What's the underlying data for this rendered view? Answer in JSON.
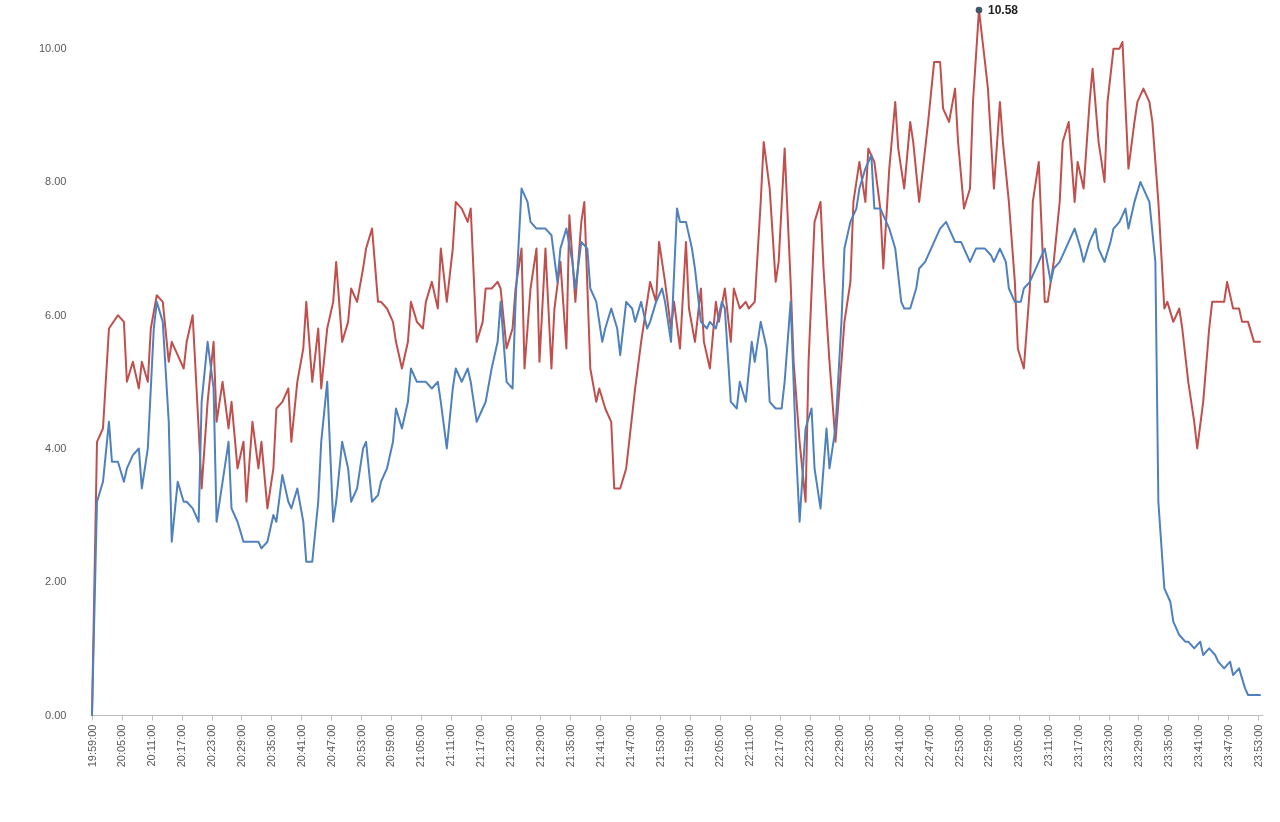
{
  "chart_data": {
    "type": "line",
    "grid": false,
    "legend": false,
    "xlim": [
      19.9833,
      23.9
    ],
    "ylim": [
      0,
      10.7
    ],
    "xticks": [
      {
        "value": 19.9833,
        "label": "19:59:00"
      },
      {
        "value": 20.0833,
        "label": "20:05:00"
      },
      {
        "value": 20.1833,
        "label": "20:11:00"
      },
      {
        "value": 20.2833,
        "label": "20:17:00"
      },
      {
        "value": 20.3833,
        "label": "20:23:00"
      },
      {
        "value": 20.4833,
        "label": "20:29:00"
      },
      {
        "value": 20.5833,
        "label": "20:35:00"
      },
      {
        "value": 20.6833,
        "label": "20:41:00"
      },
      {
        "value": 20.7833,
        "label": "20:47:00"
      },
      {
        "value": 20.8833,
        "label": "20:53:00"
      },
      {
        "value": 20.9833,
        "label": "20:59:00"
      },
      {
        "value": 21.0833,
        "label": "21:05:00"
      },
      {
        "value": 21.1833,
        "label": "21:11:00"
      },
      {
        "value": 21.2833,
        "label": "21:17:00"
      },
      {
        "value": 21.3833,
        "label": "21:23:00"
      },
      {
        "value": 21.4833,
        "label": "21:29:00"
      },
      {
        "value": 21.5833,
        "label": "21:35:00"
      },
      {
        "value": 21.6833,
        "label": "21:41:00"
      },
      {
        "value": 21.7833,
        "label": "21:47:00"
      },
      {
        "value": 21.8833,
        "label": "21:53:00"
      },
      {
        "value": 21.9833,
        "label": "21:59:00"
      },
      {
        "value": 22.0833,
        "label": "22:05:00"
      },
      {
        "value": 22.1833,
        "label": "22:11:00"
      },
      {
        "value": 22.2833,
        "label": "22:17:00"
      },
      {
        "value": 22.3833,
        "label": "22:23:00"
      },
      {
        "value": 22.4833,
        "label": "22:29:00"
      },
      {
        "value": 22.5833,
        "label": "22:35:00"
      },
      {
        "value": 22.6833,
        "label": "22:41:00"
      },
      {
        "value": 22.7833,
        "label": "22:47:00"
      },
      {
        "value": 22.8833,
        "label": "22:53:00"
      },
      {
        "value": 22.9833,
        "label": "22:59:00"
      },
      {
        "value": 23.0833,
        "label": "23:05:00"
      },
      {
        "value": 23.1833,
        "label": "23:11:00"
      },
      {
        "value": 23.2833,
        "label": "23:17:00"
      },
      {
        "value": 23.3833,
        "label": "23:23:00"
      },
      {
        "value": 23.4833,
        "label": "23:29:00"
      },
      {
        "value": 23.5833,
        "label": "23:35:00"
      },
      {
        "value": 23.6833,
        "label": "23:41:00"
      },
      {
        "value": 23.7833,
        "label": "23:47:00"
      },
      {
        "value": 23.8833,
        "label": "23:53:00"
      }
    ],
    "yticks": [
      {
        "value": 0,
        "label": "0.00"
      },
      {
        "value": 2,
        "label": "2.00"
      },
      {
        "value": 4,
        "label": "4.00"
      },
      {
        "value": 6,
        "label": "6.00"
      },
      {
        "value": 8,
        "label": "8.00"
      },
      {
        "value": 10,
        "label": "10.00"
      }
    ],
    "annotations": [
      {
        "text": "10.58",
        "x": 22.95,
        "y": 10.58
      }
    ],
    "series": [
      {
        "color": "#c0504d",
        "x": [
          19.9833,
          20.0,
          20.02,
          20.04,
          20.07,
          20.09,
          20.1,
          20.12,
          20.14,
          20.15,
          20.17,
          20.18,
          20.2,
          20.22,
          20.24,
          20.25,
          20.27,
          20.29,
          20.3,
          20.32,
          20.34,
          20.35,
          20.37,
          20.39,
          20.4,
          20.42,
          20.44,
          20.45,
          20.47,
          20.49,
          20.5,
          20.52,
          20.54,
          20.55,
          20.57,
          20.59,
          20.6,
          20.62,
          20.64,
          20.65,
          20.67,
          20.69,
          20.7,
          20.72,
          20.74,
          20.75,
          20.77,
          20.79,
          20.8,
          20.82,
          20.84,
          20.85,
          20.87,
          20.89,
          20.9,
          20.92,
          20.94,
          20.95,
          20.97,
          20.99,
          21.0,
          21.02,
          21.04,
          21.05,
          21.07,
          21.09,
          21.1,
          21.12,
          21.14,
          21.15,
          21.17,
          21.19,
          21.2,
          21.22,
          21.24,
          21.25,
          21.27,
          21.29,
          21.3,
          21.32,
          21.34,
          21.35,
          21.37,
          21.39,
          21.4,
          21.42,
          21.43,
          21.45,
          21.47,
          21.48,
          21.5,
          21.52,
          21.53,
          21.55,
          21.57,
          21.58,
          21.6,
          21.62,
          21.63,
          21.65,
          21.67,
          21.68,
          21.7,
          21.72,
          21.73,
          21.75,
          21.77,
          21.78,
          21.8,
          21.82,
          21.83,
          21.85,
          21.87,
          21.88,
          21.9,
          21.92,
          21.93,
          21.95,
          21.97,
          21.98,
          22.0,
          22.02,
          22.03,
          22.05,
          22.07,
          22.08,
          22.1,
          22.12,
          22.13,
          22.15,
          22.17,
          22.18,
          22.2,
          22.22,
          22.23,
          22.25,
          22.27,
          22.28,
          22.3,
          22.32,
          22.33,
          22.35,
          22.37,
          22.38,
          22.4,
          22.42,
          22.43,
          22.45,
          22.47,
          22.48,
          22.5,
          22.52,
          22.53,
          22.55,
          22.57,
          22.58,
          22.6,
          22.62,
          22.63,
          22.65,
          22.67,
          22.68,
          22.7,
          22.72,
          22.73,
          22.75,
          22.77,
          22.78,
          22.8,
          22.82,
          22.83,
          22.85,
          22.87,
          22.88,
          22.9,
          22.92,
          22.93,
          22.95,
          22.97,
          22.98,
          23.0,
          23.02,
          23.03,
          23.05,
          23.07,
          23.08,
          23.1,
          23.12,
          23.13,
          23.15,
          23.17,
          23.18,
          23.2,
          23.22,
          23.23,
          23.25,
          23.27,
          23.28,
          23.3,
          23.32,
          23.33,
          23.35,
          23.37,
          23.38,
          23.4,
          23.42,
          23.43,
          23.45,
          23.47,
          23.48,
          23.5,
          23.52,
          23.53,
          23.55,
          23.57,
          23.58,
          23.6,
          23.62,
          23.63,
          23.65,
          23.67,
          23.68,
          23.7,
          23.72,
          23.73,
          23.75,
          23.77,
          23.78,
          23.8,
          23.82,
          23.83,
          23.85,
          23.87,
          23.89
        ],
        "values": [
          0,
          4.1,
          4.3,
          5.8,
          6.0,
          5.9,
          5.0,
          5.3,
          4.9,
          5.3,
          5.0,
          5.8,
          6.3,
          6.2,
          5.3,
          5.6,
          5.4,
          5.2,
          5.6,
          6.0,
          4.3,
          3.4,
          4.7,
          5.6,
          4.4,
          5.0,
          4.3,
          4.7,
          3.7,
          4.1,
          3.2,
          4.4,
          3.7,
          4.1,
          3.1,
          3.7,
          4.6,
          4.7,
          4.9,
          4.1,
          5.0,
          5.5,
          6.2,
          5.0,
          5.8,
          4.9,
          5.8,
          6.2,
          6.8,
          5.6,
          5.9,
          6.4,
          6.2,
          6.7,
          7.0,
          7.3,
          6.2,
          6.2,
          6.1,
          5.9,
          5.6,
          5.2,
          5.6,
          6.2,
          5.9,
          5.8,
          6.2,
          6.5,
          6.1,
          7.0,
          6.2,
          7.0,
          7.7,
          7.6,
          7.4,
          7.6,
          5.6,
          5.9,
          6.4,
          6.4,
          6.5,
          6.4,
          5.5,
          5.8,
          6.4,
          7.0,
          5.2,
          6.4,
          7.0,
          5.3,
          7.0,
          5.2,
          6.1,
          6.8,
          5.5,
          7.5,
          6.2,
          7.4,
          7.7,
          5.2,
          4.7,
          4.9,
          4.6,
          4.4,
          3.4,
          3.4,
          3.7,
          4.1,
          4.9,
          5.6,
          5.9,
          6.5,
          6.2,
          7.1,
          6.5,
          5.8,
          6.2,
          5.5,
          7.1,
          6.1,
          5.6,
          6.4,
          5.6,
          5.2,
          6.2,
          5.9,
          6.4,
          5.6,
          6.4,
          6.1,
          6.2,
          6.1,
          6.2,
          7.7,
          8.6,
          7.9,
          6.5,
          6.8,
          8.5,
          6.5,
          5.3,
          4.1,
          3.2,
          5.3,
          7.4,
          7.7,
          6.7,
          5.3,
          4.1,
          4.7,
          5.9,
          6.5,
          7.7,
          8.3,
          7.7,
          8.5,
          8.3,
          7.6,
          6.7,
          8.2,
          9.2,
          8.5,
          7.9,
          8.9,
          8.6,
          7.7,
          8.5,
          8.9,
          9.8,
          9.8,
          9.1,
          8.9,
          9.4,
          8.6,
          7.6,
          7.9,
          9.2,
          10.58,
          9.8,
          9.4,
          7.9,
          9.2,
          8.6,
          7.7,
          6.5,
          5.5,
          5.2,
          6.4,
          7.7,
          8.3,
          6.2,
          6.2,
          6.8,
          7.7,
          8.6,
          8.9,
          7.7,
          8.3,
          7.9,
          9.2,
          9.7,
          8.6,
          8.0,
          9.2,
          10.0,
          10.0,
          10.1,
          8.2,
          8.9,
          9.2,
          9.4,
          9.2,
          8.9,
          7.7,
          6.1,
          6.2,
          5.9,
          6.1,
          5.8,
          5.0,
          4.4,
          4.0,
          4.7,
          5.8,
          6.2,
          6.2,
          6.2,
          6.5,
          6.1,
          6.1,
          5.9,
          5.9,
          5.6,
          5.6
        ]
      },
      {
        "color": "#4f81bd",
        "x": [
          19.9833,
          20.0,
          20.02,
          20.04,
          20.05,
          20.07,
          20.09,
          20.1,
          20.12,
          20.14,
          20.15,
          20.17,
          20.19,
          20.2,
          20.22,
          20.24,
          20.25,
          20.27,
          20.29,
          20.3,
          20.32,
          20.34,
          20.35,
          20.37,
          20.39,
          20.4,
          20.42,
          20.44,
          20.45,
          20.47,
          20.49,
          20.5,
          20.52,
          20.54,
          20.55,
          20.57,
          20.59,
          20.6,
          20.62,
          20.64,
          20.65,
          20.67,
          20.69,
          20.7,
          20.72,
          20.74,
          20.75,
          20.77,
          20.79,
          20.8,
          20.82,
          20.84,
          20.85,
          20.87,
          20.89,
          20.9,
          20.92,
          20.94,
          20.95,
          20.97,
          20.99,
          21.0,
          21.02,
          21.04,
          21.05,
          21.07,
          21.09,
          21.1,
          21.12,
          21.14,
          21.15,
          21.17,
          21.19,
          21.2,
          21.22,
          21.24,
          21.25,
          21.27,
          21.29,
          21.3,
          21.32,
          21.34,
          21.35,
          21.37,
          21.39,
          21.4,
          21.42,
          21.44,
          21.45,
          21.47,
          21.49,
          21.5,
          21.52,
          21.54,
          21.55,
          21.57,
          21.59,
          21.6,
          21.62,
          21.64,
          21.65,
          21.67,
          21.69,
          21.7,
          21.72,
          21.74,
          21.75,
          21.77,
          21.79,
          21.8,
          21.82,
          21.84,
          21.85,
          21.87,
          21.89,
          21.9,
          21.92,
          21.94,
          21.95,
          21.97,
          21.99,
          22.0,
          22.02,
          22.04,
          22.05,
          22.07,
          22.09,
          22.1,
          22.12,
          22.14,
          22.15,
          22.17,
          22.19,
          22.2,
          22.22,
          22.24,
          22.25,
          22.27,
          22.29,
          22.3,
          22.32,
          22.34,
          22.35,
          22.37,
          22.39,
          22.4,
          22.42,
          22.44,
          22.45,
          22.47,
          22.49,
          22.5,
          22.52,
          22.54,
          22.55,
          22.57,
          22.59,
          22.6,
          22.62,
          22.64,
          22.65,
          22.67,
          22.69,
          22.7,
          22.72,
          22.74,
          22.75,
          22.77,
          22.79,
          22.8,
          22.82,
          22.84,
          22.85,
          22.87,
          22.89,
          22.9,
          22.92,
          22.94,
          22.95,
          22.97,
          22.99,
          23.0,
          23.02,
          23.04,
          23.05,
          23.07,
          23.09,
          23.1,
          23.12,
          23.14,
          23.15,
          23.17,
          23.19,
          23.2,
          23.22,
          23.24,
          23.25,
          23.27,
          23.29,
          23.3,
          23.32,
          23.34,
          23.35,
          23.37,
          23.39,
          23.4,
          23.42,
          23.44,
          23.45,
          23.47,
          23.49,
          23.5,
          23.52,
          23.54,
          23.55,
          23.57,
          23.59,
          23.6,
          23.62,
          23.64,
          23.65,
          23.67,
          23.69,
          23.7,
          23.72,
          23.74,
          23.75,
          23.77,
          23.79,
          23.8,
          23.82,
          23.84,
          23.85,
          23.87,
          23.89
        ],
        "values": [
          0,
          3.2,
          3.5,
          4.4,
          3.8,
          3.8,
          3.5,
          3.7,
          3.9,
          4.0,
          3.4,
          4.0,
          5.8,
          6.2,
          5.9,
          4.4,
          2.6,
          3.5,
          3.2,
          3.2,
          3.1,
          2.9,
          4.7,
          5.6,
          4.9,
          2.9,
          3.5,
          4.1,
          3.1,
          2.9,
          2.6,
          2.6,
          2.6,
          2.6,
          2.5,
          2.6,
          3.0,
          2.9,
          3.6,
          3.2,
          3.1,
          3.4,
          2.9,
          2.3,
          2.3,
          3.2,
          4.1,
          5.0,
          2.9,
          3.2,
          4.1,
          3.7,
          3.2,
          3.4,
          4.0,
          4.1,
          3.2,
          3.3,
          3.5,
          3.7,
          4.1,
          4.6,
          4.3,
          4.7,
          5.2,
          5.0,
          5.0,
          5.0,
          4.9,
          5.0,
          4.7,
          4.0,
          4.9,
          5.2,
          5.0,
          5.2,
          5.0,
          4.4,
          4.6,
          4.7,
          5.2,
          5.6,
          6.2,
          5.0,
          4.9,
          6.2,
          7.9,
          7.7,
          7.4,
          7.3,
          7.3,
          7.3,
          7.2,
          6.5,
          7.0,
          7.3,
          6.8,
          6.4,
          7.1,
          7.0,
          6.4,
          6.2,
          5.6,
          5.8,
          6.1,
          5.8,
          5.4,
          6.2,
          6.1,
          5.9,
          6.2,
          5.8,
          5.9,
          6.2,
          6.4,
          6.2,
          5.6,
          7.6,
          7.4,
          7.4,
          7.0,
          6.7,
          5.9,
          5.8,
          5.9,
          5.8,
          6.2,
          6.1,
          4.7,
          4.6,
          5.0,
          4.7,
          5.6,
          5.3,
          5.9,
          5.5,
          4.7,
          4.6,
          4.6,
          5.0,
          6.2,
          3.8,
          2.9,
          4.3,
          4.6,
          3.7,
          3.1,
          4.3,
          3.7,
          4.3,
          5.9,
          7.0,
          7.4,
          7.6,
          7.9,
          8.2,
          8.4,
          7.6,
          7.6,
          7.4,
          7.3,
          7.0,
          6.2,
          6.1,
          6.1,
          6.4,
          6.7,
          6.8,
          7.0,
          7.1,
          7.3,
          7.4,
          7.3,
          7.1,
          7.1,
          7.0,
          6.8,
          7.0,
          7.0,
          7.0,
          6.9,
          6.8,
          7.0,
          6.8,
          6.4,
          6.2,
          6.2,
          6.4,
          6.5,
          6.7,
          6.8,
          7.0,
          6.5,
          6.7,
          6.8,
          7.0,
          7.1,
          7.3,
          7.0,
          6.8,
          7.1,
          7.3,
          7.0,
          6.8,
          7.1,
          7.3,
          7.4,
          7.6,
          7.3,
          7.7,
          8.0,
          7.9,
          7.7,
          6.8,
          3.2,
          1.9,
          1.7,
          1.4,
          1.2,
          1.1,
          1.1,
          1.0,
          1.1,
          0.9,
          1.0,
          0.9,
          0.8,
          0.7,
          0.8,
          0.6,
          0.7,
          0.4,
          0.3,
          0.3,
          0.3
        ]
      }
    ]
  }
}
